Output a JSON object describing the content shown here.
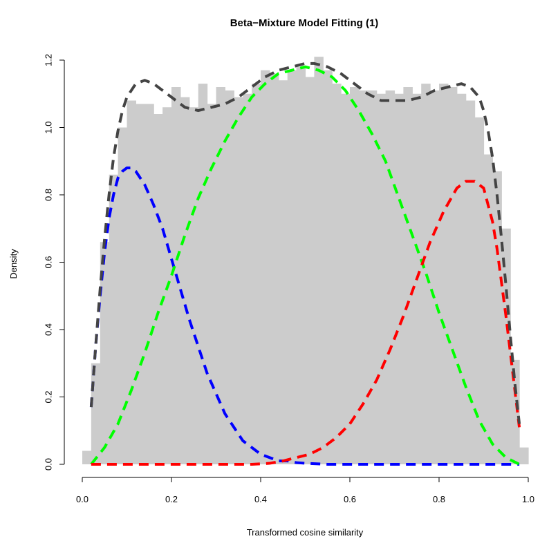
{
  "chart_data": {
    "type": "histogram-with-density-curves",
    "title": "Beta−Mixture Model Fitting (1)",
    "xlabel": "Transformed cosine similarity",
    "ylabel": "Density",
    "xlim": [
      0,
      1
    ],
    "ylim": [
      0,
      1.2
    ],
    "x_ticks": [
      "0.0",
      "0.2",
      "0.4",
      "0.6",
      "0.8",
      "1.0"
    ],
    "y_ticks": [
      "0.0",
      "0.2",
      "0.4",
      "0.6",
      "0.8",
      "1.0",
      "1.2"
    ],
    "histogram": {
      "color": "#cccccc",
      "bin_width": 0.02,
      "bin_start": 0.0,
      "densities": [
        0.04,
        0.3,
        0.66,
        0.86,
        1.0,
        1.08,
        1.07,
        1.07,
        1.04,
        1.06,
        1.12,
        1.09,
        1.06,
        1.13,
        1.07,
        1.12,
        1.11,
        1.09,
        1.1,
        1.13,
        1.17,
        1.16,
        1.14,
        1.17,
        1.18,
        1.15,
        1.21,
        1.17,
        1.13,
        1.1,
        1.12,
        1.11,
        1.11,
        1.1,
        1.11,
        1.1,
        1.12,
        1.1,
        1.13,
        1.11,
        1.13,
        1.12,
        1.1,
        1.08,
        1.03,
        0.92,
        0.87,
        0.7,
        0.31,
        0.05
      ]
    },
    "series": [
      {
        "color": "#444444",
        "x": [
          0.02,
          0.03,
          0.04,
          0.05,
          0.06,
          0.07,
          0.08,
          0.09,
          0.1,
          0.12,
          0.14,
          0.16,
          0.18,
          0.2,
          0.23,
          0.26,
          0.29,
          0.32,
          0.35,
          0.38,
          0.41,
          0.44,
          0.47,
          0.5,
          0.52,
          0.55,
          0.58,
          0.61,
          0.64,
          0.67,
          0.7,
          0.73,
          0.76,
          0.79,
          0.82,
          0.85,
          0.87,
          0.89,
          0.9,
          0.91,
          0.92,
          0.93,
          0.94,
          0.95,
          0.96,
          0.97,
          0.98
        ],
        "y": [
          0.17,
          0.35,
          0.52,
          0.67,
          0.8,
          0.91,
          0.99,
          1.05,
          1.09,
          1.13,
          1.14,
          1.13,
          1.11,
          1.09,
          1.06,
          1.05,
          1.06,
          1.07,
          1.09,
          1.12,
          1.15,
          1.17,
          1.18,
          1.19,
          1.19,
          1.18,
          1.16,
          1.13,
          1.1,
          1.08,
          1.08,
          1.08,
          1.09,
          1.11,
          1.12,
          1.13,
          1.12,
          1.09,
          1.05,
          0.99,
          0.91,
          0.8,
          0.67,
          0.53,
          0.38,
          0.24,
          0.12
        ]
      },
      {
        "color": "#0000ff",
        "x": [
          0.02,
          0.03,
          0.04,
          0.05,
          0.06,
          0.07,
          0.08,
          0.09,
          0.1,
          0.11,
          0.12,
          0.13,
          0.14,
          0.16,
          0.18,
          0.2,
          0.22,
          0.24,
          0.26,
          0.28,
          0.3,
          0.32,
          0.34,
          0.36,
          0.38,
          0.4,
          0.42,
          0.44,
          0.46,
          0.48,
          0.5,
          0.55,
          0.6,
          0.7,
          0.8,
          0.9,
          0.98
        ],
        "y": [
          0.17,
          0.35,
          0.5,
          0.63,
          0.73,
          0.8,
          0.85,
          0.87,
          0.88,
          0.88,
          0.87,
          0.85,
          0.83,
          0.77,
          0.7,
          0.61,
          0.52,
          0.43,
          0.35,
          0.27,
          0.21,
          0.15,
          0.11,
          0.07,
          0.05,
          0.03,
          0.02,
          0.01,
          0.01,
          0.005,
          0.003,
          0.0,
          0.0,
          0.0,
          0.0,
          0.0,
          0.0
        ]
      },
      {
        "color": "#00ff00",
        "x": [
          0.02,
          0.05,
          0.08,
          0.11,
          0.14,
          0.17,
          0.2,
          0.23,
          0.26,
          0.29,
          0.32,
          0.35,
          0.38,
          0.41,
          0.44,
          0.47,
          0.5,
          0.53,
          0.56,
          0.59,
          0.62,
          0.65,
          0.68,
          0.71,
          0.74,
          0.77,
          0.8,
          0.83,
          0.86,
          0.89,
          0.92,
          0.95,
          0.98
        ],
        "y": [
          0.0,
          0.05,
          0.12,
          0.22,
          0.33,
          0.45,
          0.56,
          0.68,
          0.79,
          0.88,
          0.96,
          1.03,
          1.09,
          1.13,
          1.16,
          1.17,
          1.18,
          1.17,
          1.15,
          1.11,
          1.05,
          0.98,
          0.9,
          0.79,
          0.68,
          0.57,
          0.45,
          0.34,
          0.23,
          0.13,
          0.06,
          0.02,
          0.0
        ]
      },
      {
        "color": "#ff0000",
        "x": [
          0.02,
          0.1,
          0.2,
          0.3,
          0.38,
          0.42,
          0.45,
          0.48,
          0.51,
          0.54,
          0.57,
          0.6,
          0.63,
          0.66,
          0.69,
          0.72,
          0.75,
          0.78,
          0.81,
          0.84,
          0.86,
          0.88,
          0.9,
          0.92,
          0.93,
          0.94,
          0.95,
          0.96,
          0.97,
          0.98
        ],
        "y": [
          0.0,
          0.0,
          0.0,
          0.0,
          0.0,
          0.003,
          0.01,
          0.02,
          0.03,
          0.05,
          0.08,
          0.12,
          0.18,
          0.25,
          0.34,
          0.44,
          0.55,
          0.66,
          0.75,
          0.82,
          0.84,
          0.84,
          0.82,
          0.72,
          0.64,
          0.54,
          0.44,
          0.33,
          0.22,
          0.11
        ]
      }
    ]
  }
}
